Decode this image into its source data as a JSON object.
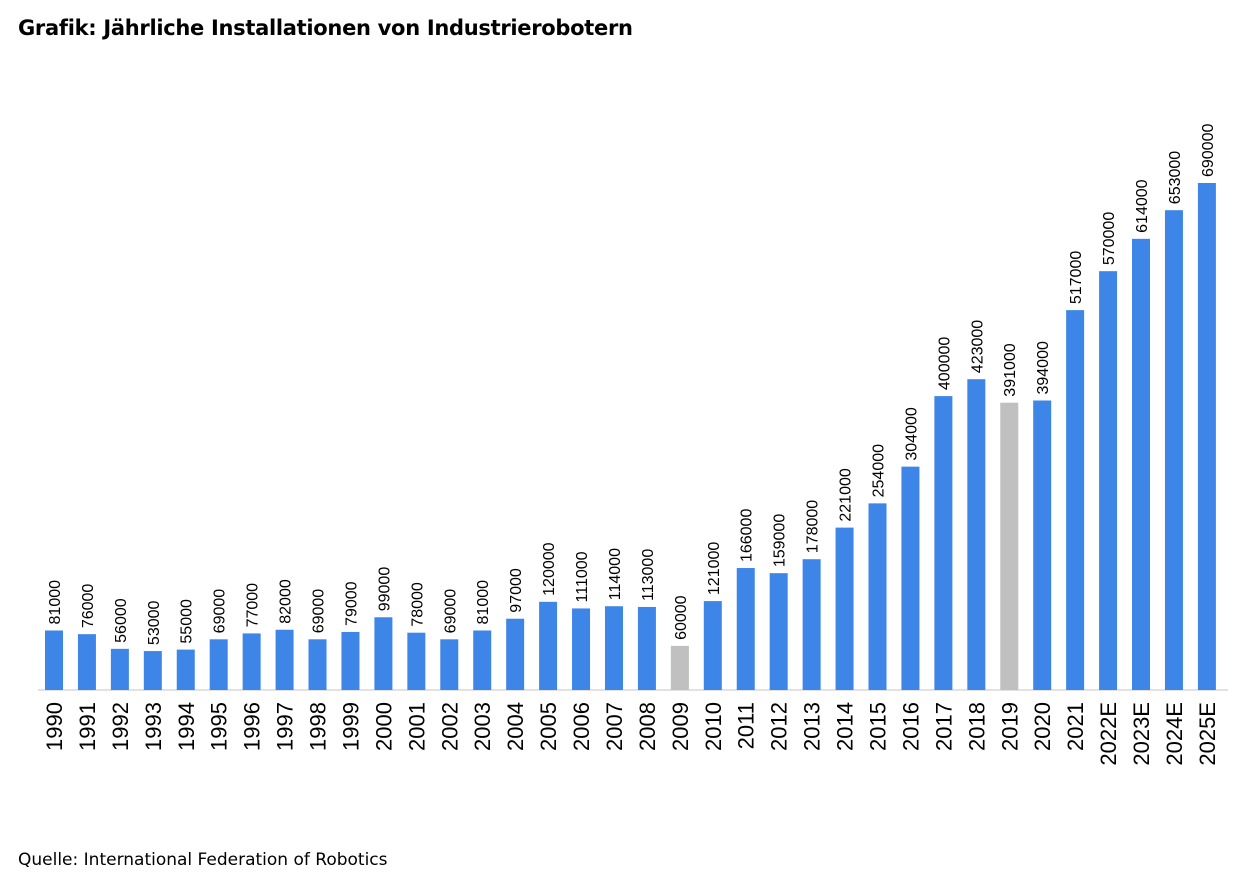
{
  "chart_data": {
    "type": "bar",
    "title": "Grafik: Jährliche Installationen von Industrierobotern",
    "source": "Quelle: International Federation of Robotics",
    "categories": [
      "1990",
      "1991",
      "1992",
      "1993",
      "1994",
      "1995",
      "1996",
      "1997",
      "1998",
      "1999",
      "2000",
      "2001",
      "2002",
      "2003",
      "2004",
      "2005",
      "2006",
      "2007",
      "2008",
      "2009",
      "2010",
      "2011",
      "2012",
      "2013",
      "2014",
      "2015",
      "2016",
      "2017",
      "2018",
      "2019",
      "2020",
      "2021",
      "2022E",
      "2023E",
      "2024E",
      "2025E"
    ],
    "values": [
      81000,
      76000,
      56000,
      53000,
      55000,
      69000,
      77000,
      82000,
      69000,
      79000,
      99000,
      78000,
      69000,
      81000,
      97000,
      120000,
      111000,
      114000,
      113000,
      60000,
      121000,
      166000,
      159000,
      178000,
      221000,
      254000,
      304000,
      400000,
      423000,
      391000,
      394000,
      517000,
      570000,
      614000,
      653000,
      690000
    ],
    "bar_colors": [
      "#3d86e8",
      "#3d86e8",
      "#3d86e8",
      "#3d86e8",
      "#3d86e8",
      "#3d86e8",
      "#3d86e8",
      "#3d86e8",
      "#3d86e8",
      "#3d86e8",
      "#3d86e8",
      "#3d86e8",
      "#3d86e8",
      "#3d86e8",
      "#3d86e8",
      "#3d86e8",
      "#3d86e8",
      "#3d86e8",
      "#3d86e8",
      "#c0c0c0",
      "#3d86e8",
      "#3d86e8",
      "#3d86e8",
      "#3d86e8",
      "#3d86e8",
      "#3d86e8",
      "#3d86e8",
      "#3d86e8",
      "#3d86e8",
      "#c0c0c0",
      "#3d86e8",
      "#3d86e8",
      "#3d86e8",
      "#3d86e8",
      "#3d86e8",
      "#3d86e8"
    ],
    "ylim": [
      0,
      690000
    ],
    "grid": false,
    "legend": "none",
    "xlabel": "",
    "ylabel": ""
  }
}
